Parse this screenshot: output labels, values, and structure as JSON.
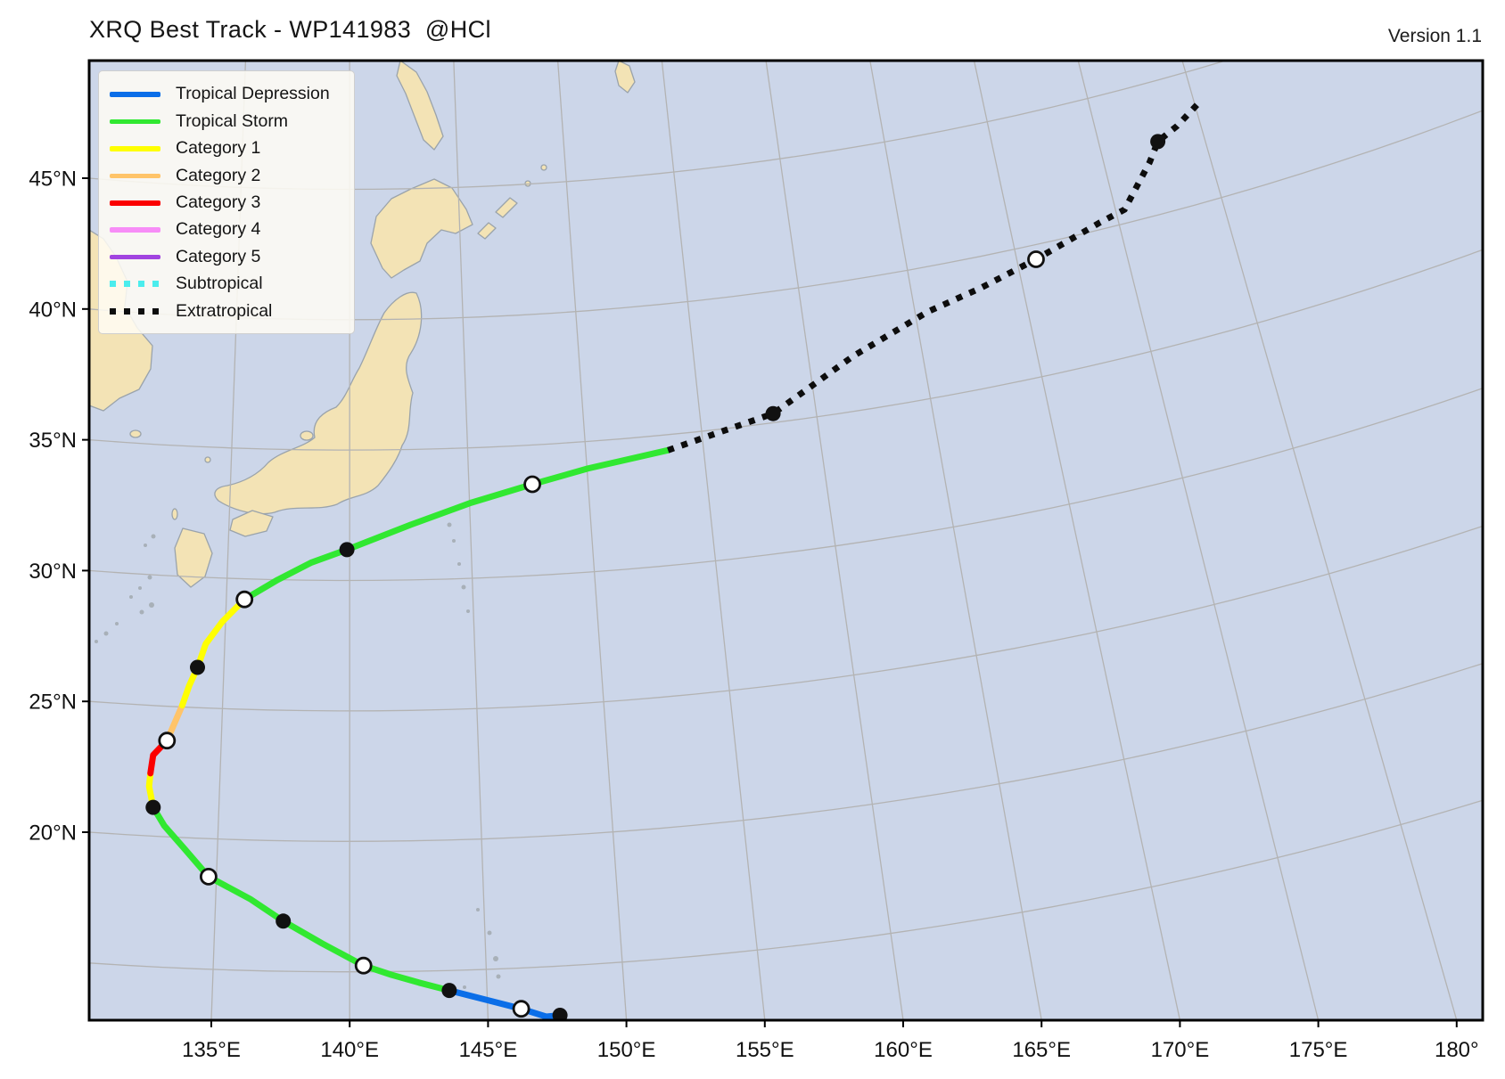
{
  "header": {
    "title": "XRQ Best Track - WP141983  @HCl",
    "version": "Version 1.1"
  },
  "legend": {
    "items": [
      {
        "label": "Tropical Depression",
        "color": "#0b6ee8",
        "style": "solid"
      },
      {
        "label": "Tropical Storm",
        "color": "#31e831",
        "style": "solid"
      },
      {
        "label": "Category 1",
        "color": "#ffff00",
        "style": "solid"
      },
      {
        "label": "Category 2",
        "color": "#ffc469",
        "style": "solid"
      },
      {
        "label": "Category 3",
        "color": "#fb0000",
        "style": "solid"
      },
      {
        "label": "Category 4",
        "color": "#f78df7",
        "style": "solid"
      },
      {
        "label": "Category 5",
        "color": "#a144e0",
        "style": "solid"
      },
      {
        "label": "Subtropical",
        "color": "#4beded",
        "style": "dotted"
      },
      {
        "label": "Extratropical",
        "color": "#0d0d0d",
        "style": "dotted"
      }
    ]
  },
  "axes": {
    "x_ticks": [
      {
        "label": "135°E",
        "lon": 135
      },
      {
        "label": "140°E",
        "lon": 140
      },
      {
        "label": "145°E",
        "lon": 145
      },
      {
        "label": "150°E",
        "lon": 150
      },
      {
        "label": "155°E",
        "lon": 155
      },
      {
        "label": "160°E",
        "lon": 160
      },
      {
        "label": "165°E",
        "lon": 165
      },
      {
        "label": "170°E",
        "lon": 170
      },
      {
        "label": "175°E",
        "lon": 175
      },
      {
        "label": "180°",
        "lon": 180
      }
    ],
    "y_ticks": [
      {
        "label": "20°N",
        "lat": 20
      },
      {
        "label": "25°N",
        "lat": 25
      },
      {
        "label": "30°N",
        "lat": 30
      },
      {
        "label": "35°N",
        "lat": 35
      },
      {
        "label": "40°N",
        "lat": 40
      },
      {
        "label": "45°N",
        "lat": 45
      }
    ],
    "grid_lats": [
      15,
      20,
      25,
      30,
      35,
      40,
      45,
      50
    ],
    "grid_lons": [
      135,
      140,
      145,
      150,
      155,
      160,
      165,
      170,
      175,
      180
    ]
  },
  "map_style": {
    "ocean_color": "#ccd6e9",
    "land_color": "#f3e3b5",
    "coast_color": "#9aa3ab",
    "grid_color": "#b3b3b3",
    "frame_color": "#000000",
    "marker_open_fill": "#ffffff",
    "marker_edge": "#111111"
  },
  "chart_data": {
    "type": "line",
    "title": "XRQ Best Track - WP141983 @HCl",
    "storm_id": "WP141983",
    "xlabel": "",
    "ylabel": "",
    "xlim": [
      130.6,
      180.9
    ],
    "ylim": [
      12.8,
      50.6
    ],
    "grid": true,
    "legend_position": "upper left",
    "track": {
      "segments": [
        {
          "status": "Tropical Depression",
          "color": "#0b6ee8",
          "dotted": false,
          "points": [
            [
              147.6,
              13.0
            ],
            [
              147.1,
              12.95
            ],
            [
              146.2,
              13.25
            ],
            [
              144.9,
              13.6
            ],
            [
              143.6,
              13.95
            ]
          ]
        },
        {
          "status": "Tropical Storm",
          "color": "#31e831",
          "dotted": false,
          "points": [
            [
              143.6,
              13.95
            ],
            [
              142.5,
              14.25
            ],
            [
              141.5,
              14.55
            ],
            [
              140.5,
              14.9
            ],
            [
              139.0,
              15.75
            ],
            [
              137.6,
              16.6
            ],
            [
              136.4,
              17.45
            ],
            [
              134.9,
              18.3
            ],
            [
              134.0,
              19.4
            ],
            [
              133.3,
              20.25
            ],
            [
              132.9,
              20.95
            ]
          ]
        },
        {
          "status": "Category 1",
          "color": "#ffff00",
          "dotted": false,
          "points": [
            [
              132.9,
              20.95
            ],
            [
              132.75,
              21.75
            ],
            [
              132.8,
              22.25
            ]
          ]
        },
        {
          "status": "Category 3",
          "color": "#fb0000",
          "dotted": false,
          "points": [
            [
              132.8,
              22.25
            ],
            [
              132.9,
              22.95
            ],
            [
              133.4,
              23.5
            ]
          ]
        },
        {
          "status": "Category 2",
          "color": "#ffc469",
          "dotted": false,
          "points": [
            [
              133.4,
              23.5
            ],
            [
              133.95,
              24.85
            ]
          ]
        },
        {
          "status": "Category 1",
          "color": "#ffff00",
          "dotted": false,
          "points": [
            [
              133.95,
              24.85
            ],
            [
              134.2,
              25.6
            ],
            [
              134.5,
              26.3
            ],
            [
              134.8,
              27.2
            ],
            [
              135.4,
              28.05
            ],
            [
              136.2,
              28.9
            ]
          ]
        },
        {
          "status": "Tropical Storm",
          "color": "#31e831",
          "dotted": false,
          "points": [
            [
              136.2,
              28.9
            ],
            [
              137.4,
              29.65
            ],
            [
              138.6,
              30.3
            ],
            [
              139.9,
              30.8
            ],
            [
              142.2,
              31.75
            ],
            [
              144.4,
              32.6
            ],
            [
              146.6,
              33.3
            ],
            [
              148.6,
              33.9
            ],
            [
              151.5,
              34.6
            ]
          ]
        },
        {
          "status": "Extratropical",
          "color": "#0d0d0d",
          "dotted": true,
          "points": [
            [
              151.5,
              34.6
            ],
            [
              155.3,
              36.0
            ],
            [
              158.2,
              38.2
            ],
            [
              160.9,
              39.9
            ],
            [
              162.8,
              40.8
            ],
            [
              164.8,
              41.9
            ],
            [
              167.1,
              43.3
            ],
            [
              168.0,
              43.8
            ],
            [
              168.5,
              44.8
            ],
            [
              168.9,
              45.6
            ],
            [
              169.2,
              46.4
            ],
            [
              169.9,
              47.0
            ],
            [
              170.7,
              47.9
            ]
          ]
        }
      ],
      "markers": [
        {
          "lon": 147.6,
          "lat": 13.0,
          "fill": "filled"
        },
        {
          "lon": 146.2,
          "lat": 13.25,
          "fill": "open"
        },
        {
          "lon": 143.6,
          "lat": 13.95,
          "fill": "filled"
        },
        {
          "lon": 140.5,
          "lat": 14.9,
          "fill": "open"
        },
        {
          "lon": 137.6,
          "lat": 16.6,
          "fill": "filled"
        },
        {
          "lon": 134.9,
          "lat": 18.3,
          "fill": "open"
        },
        {
          "lon": 132.9,
          "lat": 20.95,
          "fill": "filled"
        },
        {
          "lon": 133.4,
          "lat": 23.5,
          "fill": "open"
        },
        {
          "lon": 134.5,
          "lat": 26.3,
          "fill": "filled"
        },
        {
          "lon": 136.2,
          "lat": 28.9,
          "fill": "open"
        },
        {
          "lon": 139.9,
          "lat": 30.8,
          "fill": "filled"
        },
        {
          "lon": 146.6,
          "lat": 33.3,
          "fill": "open"
        },
        {
          "lon": 155.3,
          "lat": 36.0,
          "fill": "filled"
        },
        {
          "lon": 164.8,
          "lat": 41.9,
          "fill": "open"
        },
        {
          "lon": 169.2,
          "lat": 46.4,
          "fill": "filled"
        }
      ]
    }
  }
}
